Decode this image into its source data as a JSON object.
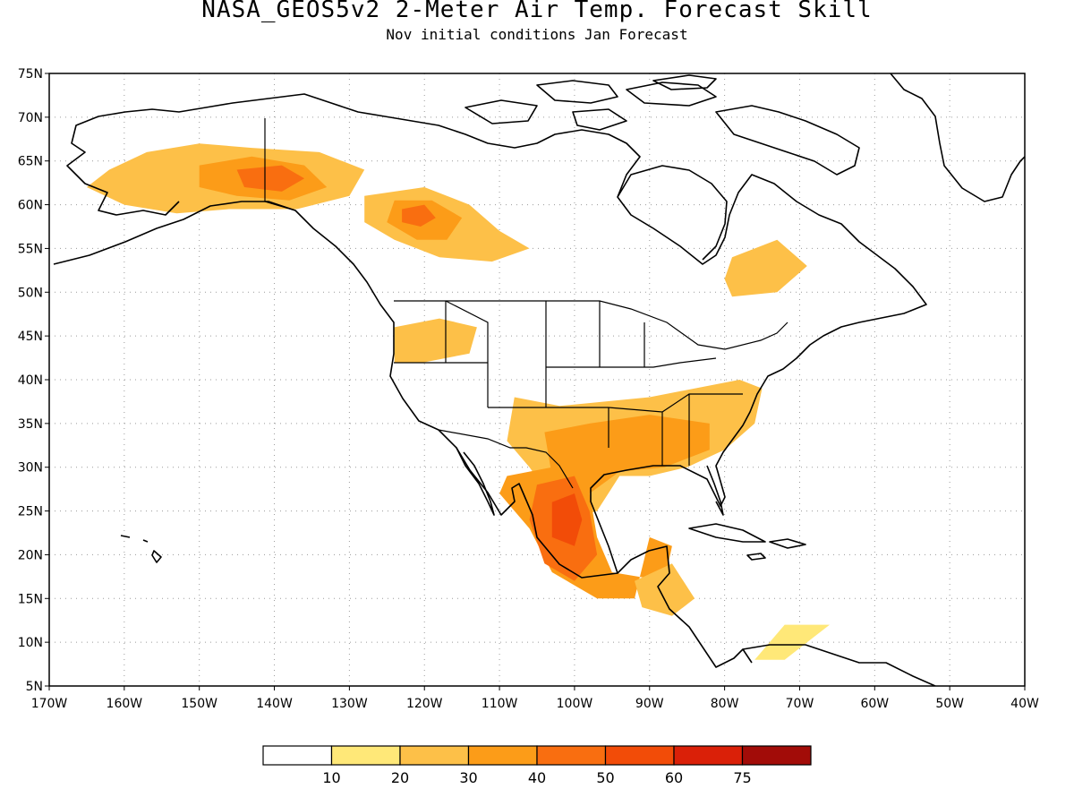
{
  "title": "NASA_GEOS5v2 2-Meter Air Temp. Forecast Skill",
  "subtitle": "Nov initial conditions  Jan Forecast",
  "map": {
    "lon_range": [
      -170,
      -40
    ],
    "lat_range": [
      5,
      75
    ],
    "lon_ticks": [
      "170W",
      "160W",
      "150W",
      "140W",
      "130W",
      "120W",
      "110W",
      "100W",
      "90W",
      "80W",
      "70W",
      "60W",
      "50W",
      "40W"
    ],
    "lat_ticks": [
      "5N",
      "10N",
      "15N",
      "20N",
      "25N",
      "30N",
      "35N",
      "40N",
      "45N",
      "50N",
      "55N",
      "60N",
      "65N",
      "70N",
      "75N"
    ],
    "grid": true,
    "regions": [
      {
        "name": "alaska-yukon",
        "level": 2,
        "lonlat": [
          [
            -162,
            64
          ],
          [
            -157,
            66
          ],
          [
            -150,
            67
          ],
          [
            -143,
            66.5
          ],
          [
            -134,
            66
          ],
          [
            -128,
            64
          ],
          [
            -130,
            61
          ],
          [
            -137,
            59.5
          ],
          [
            -146,
            59.5
          ],
          [
            -153,
            59
          ],
          [
            -160,
            60
          ],
          [
            -165,
            62
          ]
        ]
      },
      {
        "name": "alaska-core",
        "level": 3,
        "lonlat": [
          [
            -150,
            64.5
          ],
          [
            -143,
            65.5
          ],
          [
            -136,
            64.5
          ],
          [
            -133,
            62
          ],
          [
            -138,
            60.5
          ],
          [
            -145,
            61
          ],
          [
            -150,
            62
          ]
        ]
      },
      {
        "name": "alaska-peak",
        "level": 4,
        "lonlat": [
          [
            -145,
            64
          ],
          [
            -139,
            64.5
          ],
          [
            -136,
            63
          ],
          [
            -139,
            61.5
          ],
          [
            -144,
            62
          ]
        ]
      },
      {
        "name": "western-canada",
        "level": 2,
        "lonlat": [
          [
            -128,
            61
          ],
          [
            -120,
            62
          ],
          [
            -114,
            60
          ],
          [
            -110,
            57
          ],
          [
            -106,
            55
          ],
          [
            -111,
            53.5
          ],
          [
            -118,
            54
          ],
          [
            -124,
            56
          ],
          [
            -128,
            58
          ]
        ]
      },
      {
        "name": "western-canada-core",
        "level": 3,
        "lonlat": [
          [
            -124,
            60.5
          ],
          [
            -119,
            60.5
          ],
          [
            -115,
            58.5
          ],
          [
            -117,
            56
          ],
          [
            -121,
            56
          ],
          [
            -125,
            58
          ]
        ]
      },
      {
        "name": "western-canada-peak",
        "level": 4,
        "lonlat": [
          [
            -123,
            59.5
          ],
          [
            -120,
            60
          ],
          [
            -118.5,
            58.5
          ],
          [
            -120.5,
            57.5
          ],
          [
            -123,
            58
          ]
        ]
      },
      {
        "name": "quebec",
        "level": 2,
        "lonlat": [
          [
            -79,
            54
          ],
          [
            -73,
            56
          ],
          [
            -69,
            53
          ],
          [
            -73,
            50
          ],
          [
            -79,
            49.5
          ],
          [
            -80,
            51.5
          ]
        ]
      },
      {
        "name": "pacific-northwest",
        "level": 2,
        "lonlat": [
          [
            -124,
            46
          ],
          [
            -118,
            47
          ],
          [
            -113,
            46
          ],
          [
            -114,
            43
          ],
          [
            -120,
            42
          ],
          [
            -124,
            42
          ]
        ]
      },
      {
        "name": "southern-us",
        "level": 2,
        "lonlat": [
          [
            -108,
            38
          ],
          [
            -102,
            37
          ],
          [
            -90,
            38
          ],
          [
            -78,
            40
          ],
          [
            -75,
            39
          ],
          [
            -76,
            35
          ],
          [
            -80,
            32
          ],
          [
            -85,
            30
          ],
          [
            -90,
            29
          ],
          [
            -94,
            29
          ],
          [
            -97,
            25
          ],
          [
            -101,
            24
          ],
          [
            -106,
            30
          ],
          [
            -109,
            33
          ]
        ]
      },
      {
        "name": "southern-us-core",
        "level": 3,
        "lonlat": [
          [
            -104,
            34
          ],
          [
            -98,
            35
          ],
          [
            -90,
            36
          ],
          [
            -82,
            35
          ],
          [
            -82,
            32
          ],
          [
            -88,
            30
          ],
          [
            -94,
            29.5
          ],
          [
            -98,
            27
          ],
          [
            -103,
            29
          ]
        ]
      },
      {
        "name": "mexico",
        "level": 3,
        "lonlat": [
          [
            -109,
            29
          ],
          [
            -103,
            30
          ],
          [
            -98,
            27
          ],
          [
            -97,
            22
          ],
          [
            -95,
            18
          ],
          [
            -88,
            17
          ],
          [
            -87,
            21
          ],
          [
            -90,
            22
          ],
          [
            -92,
            15
          ],
          [
            -97,
            15
          ],
          [
            -103,
            18
          ],
          [
            -106,
            23
          ],
          [
            -110,
            27
          ]
        ]
      },
      {
        "name": "mexico-core",
        "level": 4,
        "lonlat": [
          [
            -105,
            28
          ],
          [
            -100,
            29
          ],
          [
            -98,
            25
          ],
          [
            -97,
            20
          ],
          [
            -100,
            17
          ],
          [
            -104,
            19
          ],
          [
            -106,
            24
          ]
        ]
      },
      {
        "name": "mexico-peak",
        "level": 5,
        "lonlat": [
          [
            -103,
            26
          ],
          [
            -100,
            27
          ],
          [
            -99,
            24
          ],
          [
            -100,
            21
          ],
          [
            -103,
            22
          ]
        ]
      },
      {
        "name": "central-america",
        "level": 2,
        "lonlat": [
          [
            -92,
            17
          ],
          [
            -87,
            19
          ],
          [
            -84,
            15
          ],
          [
            -87,
            13
          ],
          [
            -91,
            14
          ]
        ]
      },
      {
        "name": "caribbean",
        "level": 1,
        "lonlat": [
          [
            -76,
            8
          ],
          [
            -72,
            8
          ],
          [
            -66,
            12
          ],
          [
            -72,
            12
          ]
        ]
      }
    ]
  },
  "legend": {
    "labels": [
      "10",
      "20",
      "30",
      "40",
      "50",
      "60",
      "75"
    ],
    "colors": [
      "#ffffff",
      "#ffe878",
      "#fdc048",
      "#fc9c18",
      "#f96e10",
      "#f24c08",
      "#da2008",
      "#a20c08"
    ]
  }
}
